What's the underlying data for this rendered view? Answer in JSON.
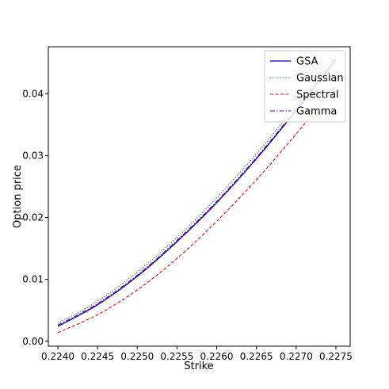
{
  "chart_data": {
    "type": "line",
    "title": "",
    "xlabel": "Strike",
    "ylabel": "Option price",
    "xlim": [
      0.22388,
      0.22768
    ],
    "ylim": [
      -0.0008,
      0.0476
    ],
    "xticks": [
      0.224,
      0.2245,
      0.225,
      0.2255,
      0.226,
      0.2265,
      0.227,
      0.2275
    ],
    "xtick_labels": [
      "0.2240",
      "0.2245",
      "0.2250",
      "0.2255",
      "0.2260",
      "0.2265",
      "0.2270",
      "0.2275"
    ],
    "yticks": [
      0.0,
      0.01,
      0.02,
      0.03,
      0.04
    ],
    "ytick_labels": [
      "0.00",
      "0.01",
      "0.02",
      "0.03",
      "0.04"
    ],
    "grid": false,
    "legend_position": "top-right",
    "series": [
      {
        "name": "GSA",
        "color": "#0000cc",
        "style": "solid",
        "x": [
          0.224,
          0.2245,
          0.225,
          0.2255,
          0.226,
          0.2265,
          0.227,
          0.2275
        ],
        "y": [
          0.0024,
          0.0059,
          0.0105,
          0.0161,
          0.0224,
          0.0295,
          0.0373,
          0.0455
        ]
      },
      {
        "name": "Gaussian",
        "color": "#008000",
        "style": "dotted",
        "x": [
          0.224,
          0.2245,
          0.225,
          0.2255,
          0.226,
          0.2265,
          0.227,
          0.2275
        ],
        "y": [
          0.0029,
          0.0065,
          0.0112,
          0.0168,
          0.0232,
          0.0303,
          0.0381,
          0.0462
        ]
      },
      {
        "name": "Spectral",
        "color": "#ff0000",
        "style": "dashed",
        "x": [
          0.224,
          0.2245,
          0.225,
          0.2255,
          0.226,
          0.2265,
          0.227,
          0.2275
        ],
        "y": [
          0.0014,
          0.0043,
          0.0083,
          0.0134,
          0.0194,
          0.0261,
          0.0335,
          0.0414
        ]
      },
      {
        "name": "Gamma",
        "color": "#800080",
        "style": "dashdot",
        "x": [
          0.224,
          0.2245,
          0.225,
          0.2255,
          0.226,
          0.2265,
          0.227,
          0.2275
        ],
        "y": [
          0.0026,
          0.0061,
          0.0107,
          0.0163,
          0.0226,
          0.0297,
          0.0375,
          0.0457
        ]
      }
    ]
  }
}
